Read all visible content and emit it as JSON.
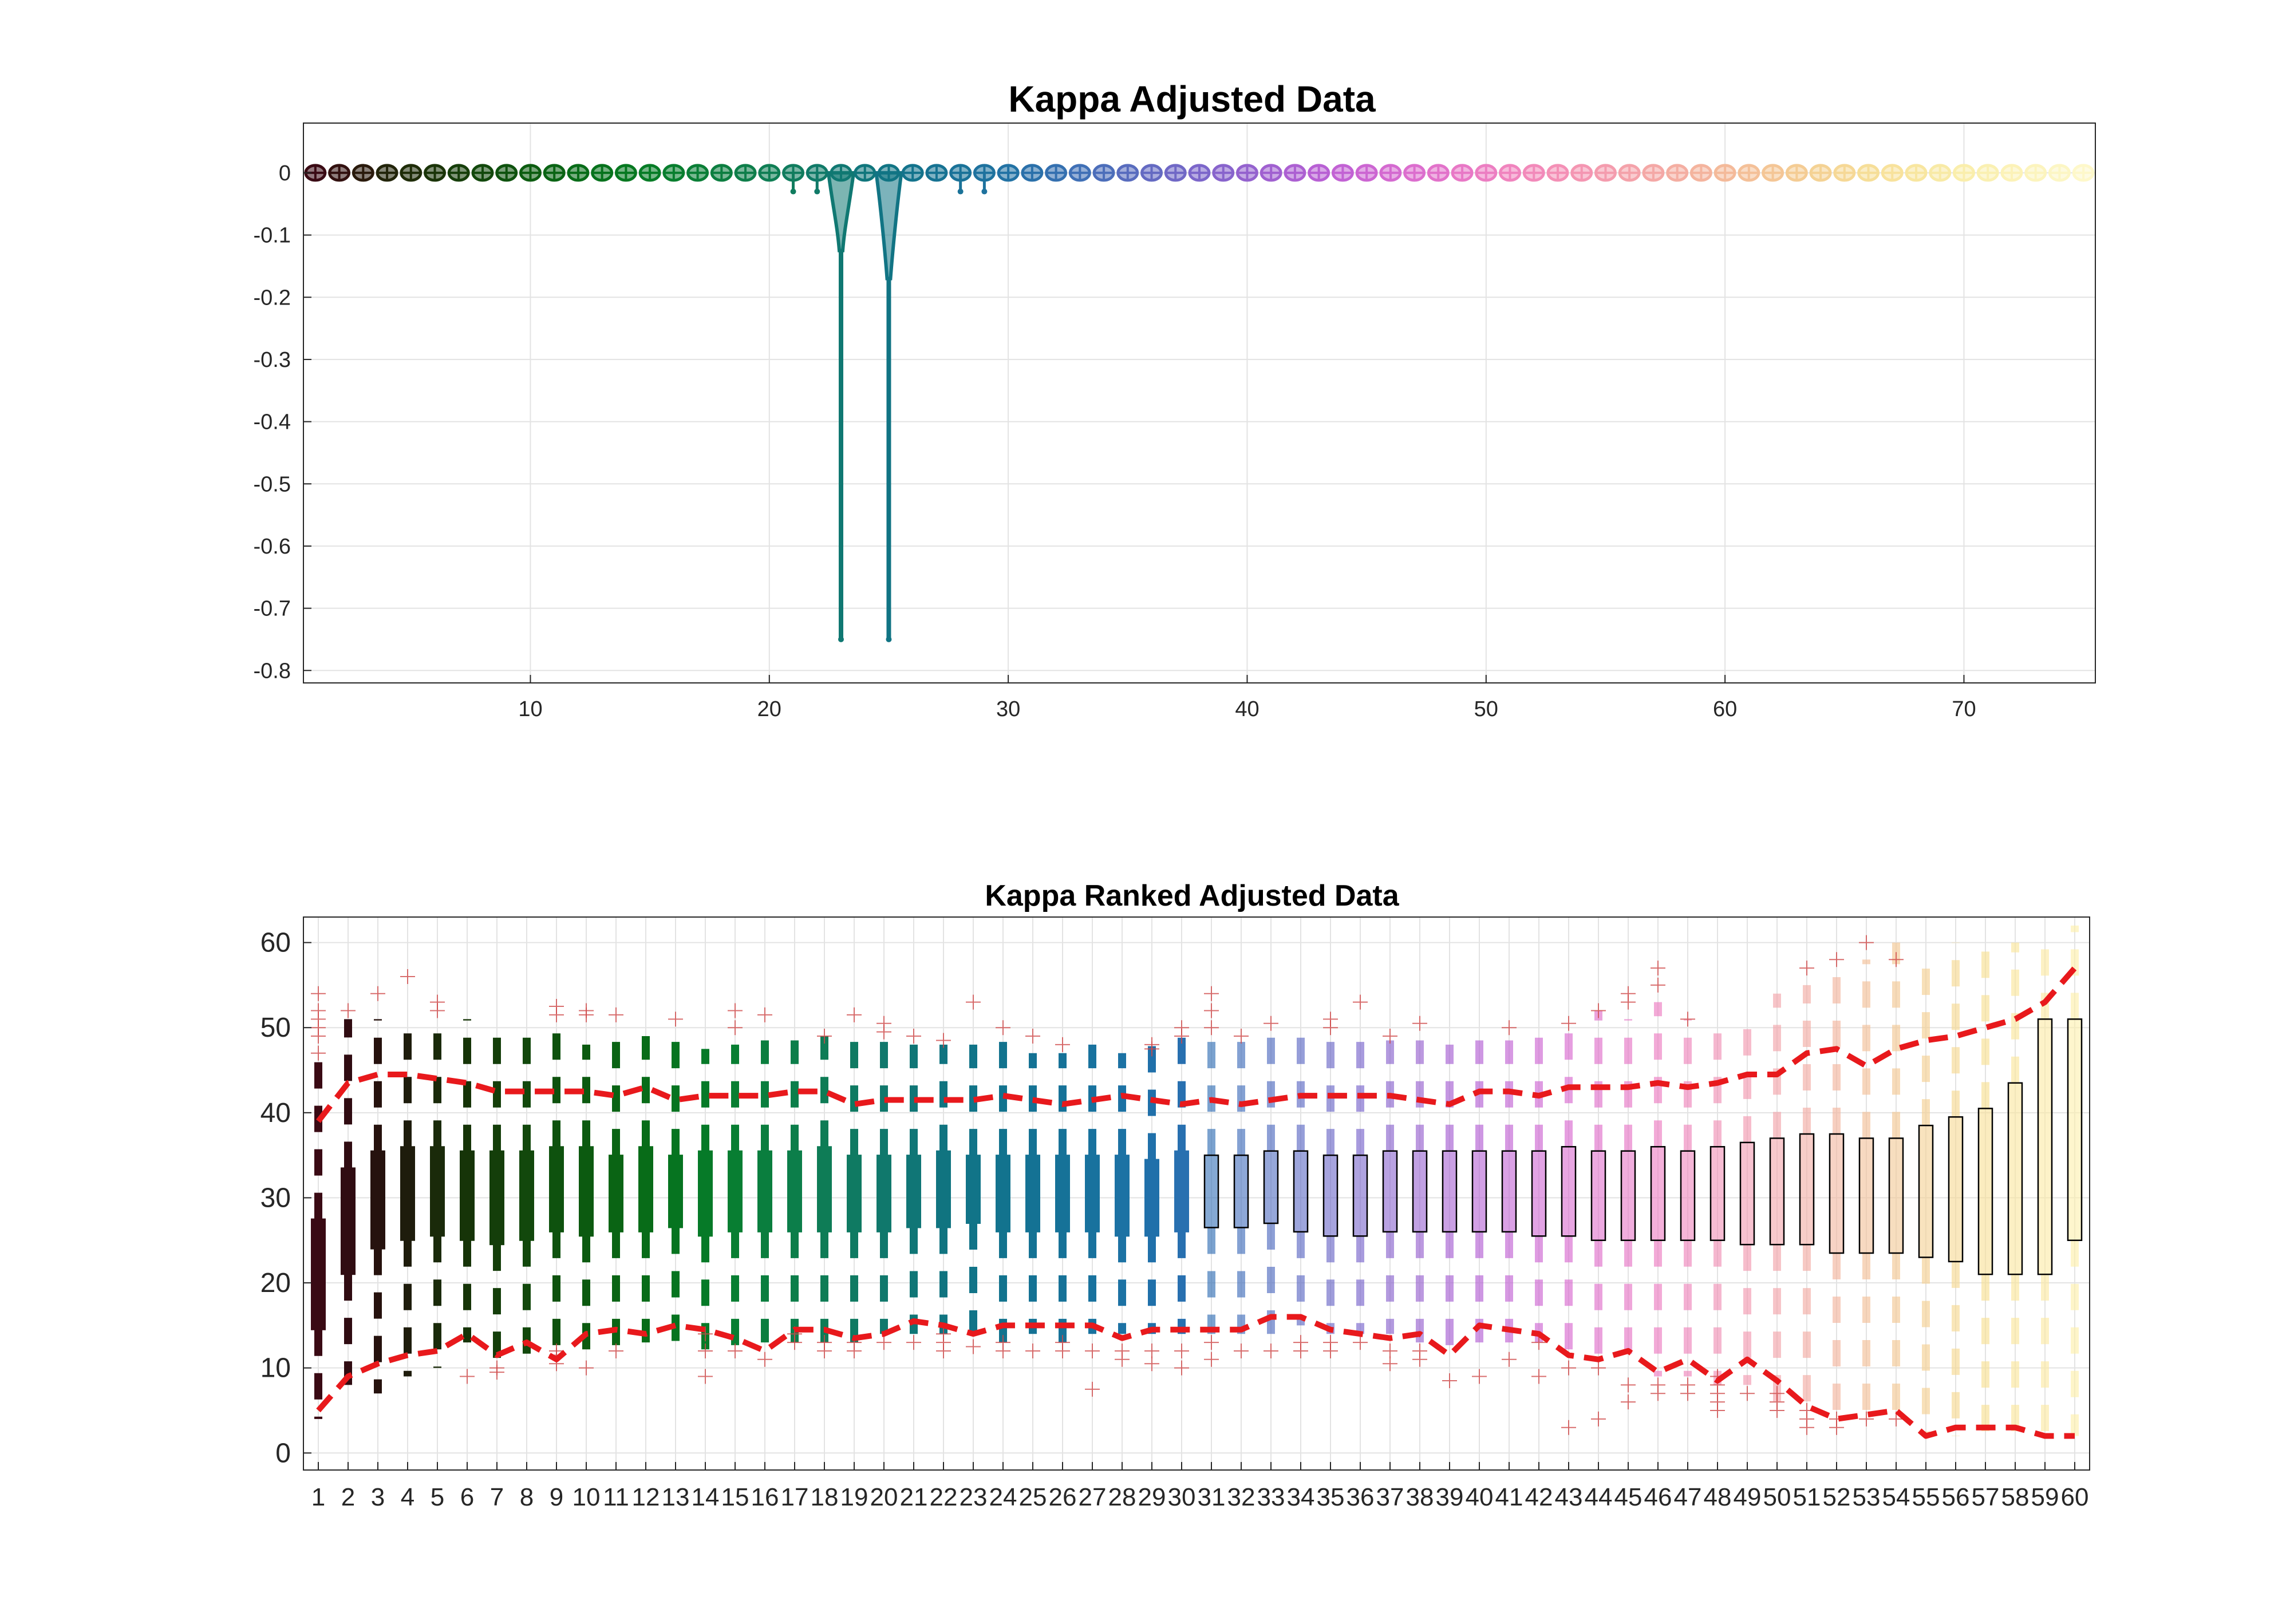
{
  "figure": {
    "background": "#ffffff"
  },
  "chart_data": [
    {
      "type": "violin",
      "title": "Kappa Adjusted Data",
      "xlabel": "",
      "ylabel": "",
      "xlim": [
        0.5,
        75.5
      ],
      "ylim": [
        -0.82,
        0.08
      ],
      "xticks": [
        10,
        20,
        30,
        40,
        50,
        60,
        70
      ],
      "yticks": [
        0,
        -0.1,
        -0.2,
        -0.3,
        -0.4,
        -0.5,
        -0.6,
        -0.7,
        -0.8
      ],
      "xtick_labels": [
        "10",
        "20",
        "30",
        "40",
        "50",
        "60",
        "70"
      ],
      "ytick_labels": [
        "0",
        "-0.1",
        "-0.2",
        "-0.3",
        "-0.4",
        "-0.5",
        "-0.6",
        "-0.7",
        "-0.8"
      ],
      "grid": true,
      "n_series": 75,
      "series_index": [
        1,
        2,
        3,
        4,
        5,
        6,
        7,
        8,
        9,
        10,
        11,
        12,
        13,
        14,
        15,
        16,
        17,
        18,
        19,
        20,
        21,
        22,
        23,
        24,
        25,
        26,
        27,
        28,
        29,
        30,
        31,
        32,
        33,
        34,
        35,
        36,
        37,
        38,
        39,
        40,
        41,
        42,
        43,
        44,
        45,
        46,
        47,
        48,
        49,
        50,
        51,
        52,
        53,
        54,
        55,
        56,
        57,
        58,
        59,
        60,
        61,
        62,
        63,
        64,
        65,
        66,
        67,
        68,
        69,
        70,
        71,
        72,
        73,
        74,
        75
      ],
      "median": [
        0,
        0,
        0,
        0,
        0,
        0,
        0,
        0,
        0,
        0,
        0,
        0,
        0,
        0,
        0,
        0,
        0,
        0,
        0,
        0,
        0,
        0,
        0,
        0,
        0,
        0,
        0,
        0,
        0,
        0,
        0,
        0,
        0,
        0,
        0,
        0,
        0,
        0,
        0,
        0,
        0,
        0,
        0,
        0,
        0,
        0,
        0,
        0,
        0,
        0,
        0,
        0,
        0,
        0,
        0,
        0,
        0,
        0,
        0,
        0,
        0,
        0,
        0,
        0,
        0,
        0,
        0,
        0,
        0,
        0,
        0,
        0,
        0,
        0,
        0
      ],
      "min": [
        0,
        0,
        0,
        0,
        0,
        0,
        0,
        0,
        0,
        0,
        0,
        0,
        0,
        0,
        0,
        0,
        0,
        0,
        0,
        0,
        -0.03,
        -0.03,
        -0.75,
        0,
        -0.75,
        0,
        0,
        -0.03,
        -0.03,
        0,
        0,
        0,
        0,
        0,
        0,
        0,
        0,
        0,
        0,
        0,
        0,
        0,
        0,
        0,
        0,
        0,
        0,
        0,
        0,
        0,
        0,
        0,
        0,
        0,
        0,
        0,
        0,
        0,
        0,
        0,
        0,
        0,
        0,
        0,
        0,
        0,
        0,
        0,
        0,
        0,
        0,
        0,
        0,
        0,
        0
      ],
      "shoulder": [
        0,
        0,
        0,
        0,
        0,
        0,
        0,
        0,
        0,
        0,
        0,
        0,
        0,
        0,
        0,
        0,
        0,
        0,
        0,
        0,
        0,
        0,
        -0.125,
        0,
        -0.17,
        0,
        0,
        0,
        0,
        0,
        0,
        0,
        0,
        0,
        0,
        0,
        0,
        0,
        0,
        0,
        0,
        0,
        0,
        0,
        0,
        0,
        0,
        0,
        0,
        0,
        0,
        0,
        0,
        0,
        0,
        0,
        0,
        0,
        0,
        0,
        0,
        0,
        0,
        0,
        0,
        0,
        0,
        0,
        0,
        0,
        0,
        0,
        0,
        0,
        0
      ],
      "colors": [
        "#3a0a14",
        "#32100f",
        "#2a1a0c",
        "#22240a",
        "#1e2c08",
        "#1a3408",
        "#163e0a",
        "#12480c",
        "#0e520e",
        "#0c5c10",
        "#0a6414",
        "#086c18",
        "#06721c",
        "#067820",
        "#067c26",
        "#087e2e",
        "#0a7e36",
        "#0c7e40",
        "#0e7e4a",
        "#0f7e54",
        "#107c5e",
        "#107a68",
        "#107872",
        "#10767c",
        "#117484",
        "#13738c",
        "#167292",
        "#1a7298",
        "#1e729e",
        "#2272a4",
        "#2a70aa",
        "#3470b0",
        "#4070b6",
        "#4c6eba",
        "#586cbe",
        "#646ac2",
        "#7068c6",
        "#7c66ca",
        "#8864cc",
        "#9462ce",
        "#a060d0",
        "#ac60d2",
        "#b860d4",
        "#c262d4",
        "#cc66d2",
        "#d46ad0",
        "#dc6ece",
        "#e272ca",
        "#e878c6",
        "#ec7ec2",
        "#f084be",
        "#f28aba",
        "#f490b6",
        "#f496b2",
        "#f49cae",
        "#f4a2aa",
        "#f4a8a6",
        "#f4aea2",
        "#f4b49e",
        "#f4ba9a",
        "#f4c098",
        "#f4c696",
        "#f4cc94",
        "#f4d294",
        "#f6d896",
        "#f6de98",
        "#f8e29c",
        "#f8e6a0",
        "#f8eaa6",
        "#faeeac",
        "#faf0b2",
        "#fcf2b8",
        "#fcf4be",
        "#fcf6c4",
        "#fef8ca"
      ]
    },
    {
      "type": "boxplot",
      "title": "Kappa Ranked Adjusted Data",
      "xlabel": "",
      "ylabel": "",
      "xlim": [
        0.5,
        60.5
      ],
      "ylim": [
        -2,
        63
      ],
      "yticks": [
        0,
        10,
        20,
        30,
        40,
        50,
        60
      ],
      "ytick_labels": [
        "0",
        "10",
        "20",
        "30",
        "40",
        "50",
        "60"
      ],
      "categories": [
        "1",
        "2",
        "3",
        "4",
        "5",
        "6",
        "7",
        "8",
        "9",
        "10",
        "11",
        "12",
        "13",
        "14",
        "15",
        "16",
        "17",
        "18",
        "19",
        "20",
        "21",
        "22",
        "23",
        "24",
        "25",
        "26",
        "27",
        "28",
        "29",
        "30",
        "31",
        "32",
        "33",
        "34",
        "35",
        "36",
        "37",
        "38",
        "39",
        "40",
        "41",
        "42",
        "43",
        "44",
        "45",
        "46",
        "47",
        "48",
        "49",
        "50",
        "51",
        "52",
        "53",
        "54",
        "55",
        "56",
        "57",
        "58",
        "59",
        "60"
      ],
      "grid": true,
      "q1": [
        14.5,
        21,
        24,
        25,
        25.5,
        25,
        24.5,
        25,
        26,
        25.5,
        26,
        26,
        26.5,
        25.5,
        26,
        26,
        26,
        26,
        26,
        26,
        26.5,
        26.5,
        27,
        26,
        26,
        26,
        26,
        25.5,
        25.5,
        26,
        26.5,
        26.5,
        27,
        26,
        25.5,
        25.5,
        26,
        26,
        26,
        26,
        26,
        25.5,
        25.5,
        25,
        25,
        25,
        25,
        25,
        24.5,
        24.5,
        24.5,
        23.5,
        23.5,
        23.5,
        23,
        22.5,
        21,
        21,
        21,
        25
      ],
      "median": [
        20,
        26,
        29,
        30,
        30,
        30,
        30,
        30,
        30,
        30,
        30,
        30,
        30,
        30,
        30,
        30,
        30,
        30,
        30,
        30,
        30,
        30,
        30,
        30,
        30,
        30,
        30,
        30,
        30,
        30,
        30,
        30,
        30,
        30,
        30,
        30,
        30,
        30,
        30,
        30,
        30,
        30,
        30,
        30,
        30,
        30,
        30,
        30,
        30,
        30,
        30,
        30,
        30,
        30,
        30,
        30,
        30,
        30,
        30,
        38
      ],
      "q3": [
        27.5,
        33.5,
        35.5,
        36,
        36,
        35.5,
        35.5,
        35.5,
        36,
        36,
        35,
        36,
        35,
        35.5,
        35.5,
        35.5,
        35.5,
        36,
        35,
        35,
        35,
        35.5,
        35,
        35,
        35,
        35,
        35,
        35,
        34.5,
        35.5,
        35,
        35,
        35.5,
        35.5,
        35,
        35,
        35.5,
        35.5,
        35.5,
        35.5,
        35.5,
        35.5,
        36,
        35.5,
        35.5,
        36,
        35.5,
        36,
        36.5,
        37,
        37.5,
        37.5,
        37,
        37,
        38.5,
        39.5,
        40.5,
        43.5,
        51,
        51
      ],
      "whisker_low": [
        4,
        8,
        7,
        9,
        10,
        13,
        10,
        10,
        11,
        12,
        12,
        13,
        12,
        12,
        12,
        13,
        13,
        13,
        13,
        14,
        14,
        14,
        14,
        13,
        14,
        13,
        14,
        14,
        14,
        14,
        14,
        14,
        14,
        15,
        14,
        14,
        14,
        13,
        12,
        13,
        13,
        13,
        12,
        11,
        10,
        9,
        9,
        8,
        8,
        6,
        5,
        4,
        4,
        4,
        2,
        2,
        2,
        2,
        2,
        2
      ],
      "whisker_high": [
        46,
        51,
        51,
        51,
        51,
        51,
        50,
        49.5,
        49.5,
        48,
        48.5,
        49,
        48.5,
        47.5,
        48,
        48.5,
        48.5,
        49,
        49,
        49,
        48,
        48,
        48,
        49,
        47,
        47,
        48,
        47,
        48,
        50,
        48.5,
        49,
        49,
        49,
        49,
        49,
        48.5,
        48.5,
        48,
        48.5,
        48.5,
        50,
        50,
        52,
        51,
        53,
        51,
        51,
        50.5,
        54,
        55,
        56,
        58,
        60,
        58,
        60,
        60,
        60,
        60,
        62
      ],
      "outliers": [
        [
          47,
          49,
          50,
          51,
          52,
          54
        ],
        [
          52
        ],
        [
          54
        ],
        [
          56
        ],
        [
          52,
          53
        ],
        [
          9
        ],
        [
          9.5,
          10
        ],
        [],
        [
          10.5,
          11.5,
          12,
          51.5,
          52.5
        ],
        [
          10,
          51.5,
          52
        ],
        [
          12,
          51.5
        ],
        [],
        [
          51
        ],
        [
          9,
          12,
          14
        ],
        [
          12,
          50,
          52
        ],
        [
          11,
          51.5
        ],
        [
          13,
          14
        ],
        [
          12,
          13,
          49
        ],
        [
          12,
          13,
          51.5
        ],
        [
          13,
          49.5,
          50.5
        ],
        [
          13,
          49
        ],
        [
          12,
          13,
          14,
          48.5
        ],
        [
          12.5,
          53
        ],
        [
          12,
          13,
          50
        ],
        [
          12,
          49
        ],
        [
          12,
          13,
          48
        ],
        [
          7.5,
          12
        ],
        [
          11,
          12
        ],
        [
          10.5,
          12,
          47.5,
          48
        ],
        [
          10,
          12,
          49,
          50
        ],
        [
          11,
          13,
          50,
          52,
          54
        ],
        [
          12,
          49
        ],
        [
          12,
          50.5
        ],
        [
          12,
          13
        ],
        [
          12,
          13,
          50,
          51
        ],
        [
          13,
          53
        ],
        [
          10.5,
          12,
          49
        ],
        [
          11,
          12,
          50.5
        ],
        [
          8.5
        ],
        [
          9
        ],
        [
          11,
          50
        ],
        [
          9,
          13
        ],
        [
          3,
          10,
          50.5
        ],
        [
          4,
          10,
          52
        ],
        [
          6,
          8,
          53,
          54
        ],
        [
          7,
          8,
          55,
          57
        ],
        [
          7,
          8,
          51
        ],
        [
          5,
          6,
          7,
          8,
          9
        ],
        [
          7
        ],
        [
          5,
          6,
          7
        ],
        [
          3,
          4,
          5,
          57
        ],
        [
          3,
          4,
          58
        ],
        [
          4,
          60
        ],
        [
          4,
          58
        ],
        [],
        [],
        [],
        [],
        [],
        []
      ],
      "pct_low": [
        5,
        9,
        10.5,
        11.5,
        12,
        14,
        11.5,
        13,
        11,
        14,
        14.5,
        14,
        15,
        14.5,
        13.5,
        12,
        14.5,
        14.5,
        13.5,
        14,
        15.5,
        15,
        14,
        15,
        15,
        15,
        15,
        13.5,
        14.5,
        14.5,
        14.5,
        14.5,
        16,
        16,
        14.5,
        14,
        13.5,
        14,
        11.5,
        15,
        14.5,
        14,
        11.5,
        11,
        12,
        9.5,
        11,
        8.5,
        11,
        8.5,
        5.5,
        4,
        4.5,
        5,
        2,
        3,
        3,
        3,
        2,
        2
      ],
      "pct_high": [
        39,
        43.5,
        44.5,
        44.5,
        44,
        43.5,
        42.5,
        42.5,
        42.5,
        42.5,
        42,
        43,
        41.5,
        42,
        42,
        42,
        42.5,
        42.5,
        41,
        41.5,
        41.5,
        41.5,
        41.5,
        42,
        41.5,
        41,
        41.5,
        42,
        41.5,
        41,
        41.5,
        41,
        41.5,
        42,
        42,
        42,
        42,
        41.5,
        41,
        42.5,
        42.5,
        42,
        43,
        43,
        43,
        43.5,
        43,
        43.5,
        44.5,
        44.5,
        47,
        47.5,
        45.5,
        47.5,
        48.5,
        49,
        50,
        51,
        53,
        57
      ],
      "colors": [
        "#3a0a14",
        "#300c12",
        "#26120e",
        "#1e1c0c",
        "#1a2a0a",
        "#163408",
        "#143e0a",
        "#12480c",
        "#0e520e",
        "#0c5a10",
        "#0a6414",
        "#086c18",
        "#067420",
        "#067a28",
        "#087e32",
        "#0a7e3e",
        "#0c7e4a",
        "#0e7c56",
        "#0f7a62",
        "#10786c",
        "#107676",
        "#107480",
        "#117488",
        "#12738e",
        "#147294",
        "#167298",
        "#18729e",
        "#1c72a4",
        "#2070aa",
        "#2870b0",
        "#3470b6",
        "#426ebc",
        "#506cc0",
        "#5e6ac4",
        "#6c68c8",
        "#7a66cc",
        "#8a64ce",
        "#9862d0",
        "#a660d2",
        "#b460d4",
        "#c262d4",
        "#ce66d2",
        "#d86acf",
        "#e070cb",
        "#e676c6",
        "#ec7cc2",
        "#ee86bc",
        "#f090b6",
        "#f29ab0",
        "#f2a4aa",
        "#f2aca4",
        "#f2b69e",
        "#f2c098",
        "#f2c894",
        "#f4d092",
        "#f6d892",
        "#f8e094",
        "#fae69c",
        "#fceaa4",
        "#fef0ac"
      ]
    }
  ]
}
